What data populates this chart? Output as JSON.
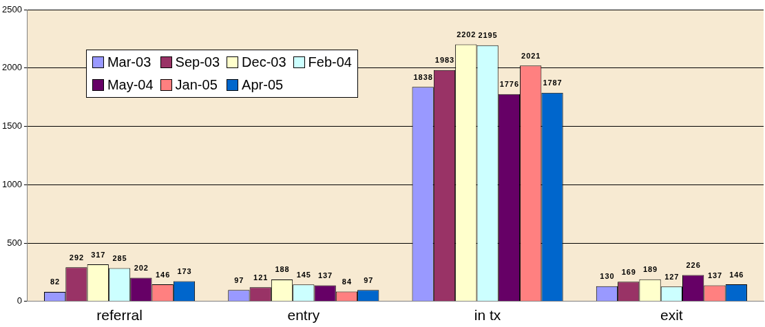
{
  "chart_data": {
    "type": "bar",
    "categories": [
      "referral",
      "entry",
      "in tx",
      "exit"
    ],
    "series": [
      {
        "name": "Mar-03",
        "color": "#9999ff",
        "values": [
          82,
          97,
          1838,
          130
        ]
      },
      {
        "name": "Sep-03",
        "color": "#993366",
        "values": [
          292,
          121,
          1983,
          169
        ]
      },
      {
        "name": "Dec-03",
        "color": "#ffffcc",
        "values": [
          317,
          188,
          2202,
          189
        ]
      },
      {
        "name": "Feb-04",
        "color": "#ccffff",
        "values": [
          285,
          145,
          2195,
          127
        ]
      },
      {
        "name": "May-04",
        "color": "#660066",
        "values": [
          202,
          137,
          1776,
          226
        ]
      },
      {
        "name": "Jan-05",
        "color": "#ff8080",
        "values": [
          146,
          84,
          2021,
          137
        ]
      },
      {
        "name": "Apr-05",
        "color": "#0066cc",
        "values": [
          173,
          97,
          1787,
          146
        ]
      }
    ],
    "ylim": [
      0,
      2500
    ],
    "yticks": [
      0,
      500,
      1000,
      1500,
      2000,
      2500
    ],
    "grid": "y",
    "legend": "top left",
    "data_labels": true
  }
}
